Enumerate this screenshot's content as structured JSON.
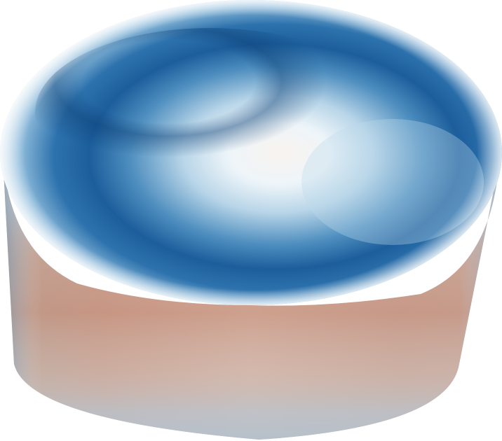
{
  "scene": {
    "subject": "cylinder",
    "background": "#ffffff",
    "colormap": [
      "#053061",
      "#2166ac",
      "#4393c3",
      "#92c5de",
      "#d1e5f0",
      "#f7f7f7",
      "#fddbc7",
      "#f4a582",
      "#d6604d"
    ]
  }
}
